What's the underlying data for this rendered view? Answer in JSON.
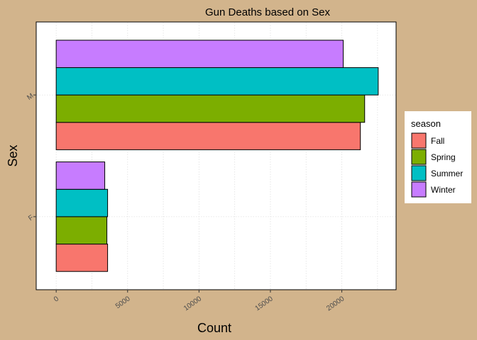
{
  "chart_data": {
    "type": "bar",
    "orientation": "horizontal",
    "title": "Gun Deaths based on Sex",
    "xlabel": "Count",
    "ylabel": "Sex",
    "categories": [
      "F",
      "M"
    ],
    "series": [
      {
        "name": "Fall",
        "color": "#f8766d",
        "values": [
          3600,
          21300
        ]
      },
      {
        "name": "Spring",
        "color": "#7cae00",
        "values": [
          3550,
          21600
        ]
      },
      {
        "name": "Summer",
        "color": "#00bfc4",
        "values": [
          3600,
          22550
        ]
      },
      {
        "name": "Winter",
        "color": "#c77cff",
        "values": [
          3400,
          20100
        ]
      }
    ],
    "xlim": [
      -1400,
      23800
    ],
    "xticks": [
      0,
      5000,
      10000,
      15000,
      20000
    ],
    "xtick_labels": [
      "0",
      "5000",
      "10000",
      "15000",
      "20000"
    ],
    "grid": true,
    "legend": {
      "title": "season",
      "position": "right"
    },
    "background": "#d2b48c",
    "panel_background": "#ffffff"
  }
}
